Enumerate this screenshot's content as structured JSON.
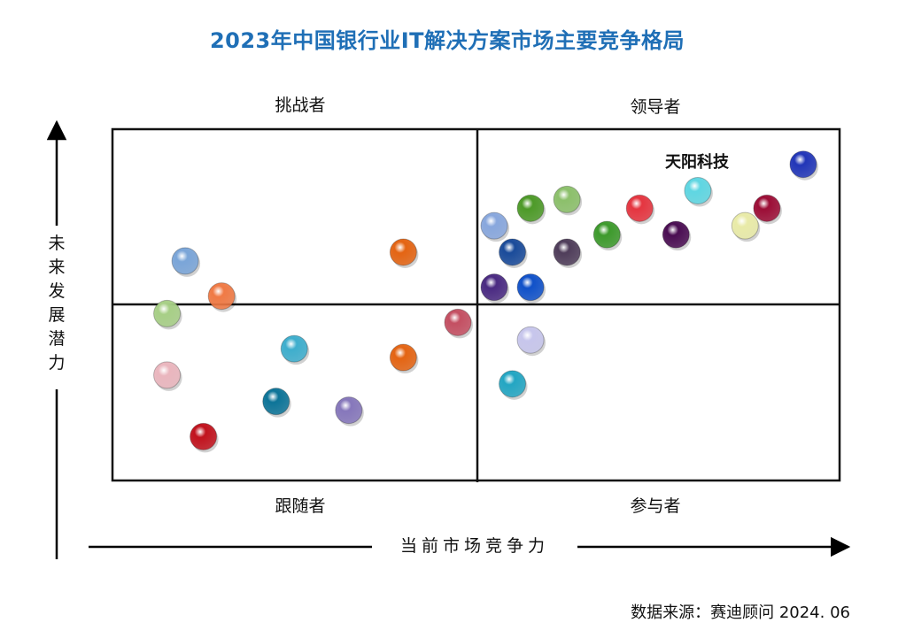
{
  "chart_data": {
    "type": "scatter",
    "title": "2023年中国银行业IT解决方案市场主要竞争格局",
    "xlabel": "当前市场竞争力",
    "ylabel": "未来发展潜力",
    "xlim": [
      0,
      100
    ],
    "ylim": [
      0,
      100
    ],
    "quadrants": {
      "top_left": "挑战者",
      "top_right": "领导者",
      "bottom_left": "跟随者",
      "bottom_right": "参与者"
    },
    "highlight_label": "天阳科技",
    "points": [
      {
        "x": 95.0,
        "y": 90.0,
        "color": "#2236b8"
      },
      {
        "x": 80.5,
        "y": 82.5,
        "color": "#5fd6e2"
      },
      {
        "x": 90.0,
        "y": 77.5,
        "color": "#9c0d36"
      },
      {
        "x": 87.0,
        "y": 72.5,
        "color": "#e9eba8"
      },
      {
        "x": 72.5,
        "y": 77.5,
        "color": "#e53540"
      },
      {
        "x": 77.5,
        "y": 70.0,
        "color": "#4a0d52"
      },
      {
        "x": 68.0,
        "y": 70.0,
        "color": "#3d9a2c"
      },
      {
        "x": 62.5,
        "y": 80.0,
        "color": "#8cc06b"
      },
      {
        "x": 57.5,
        "y": 77.5,
        "color": "#4d9a28"
      },
      {
        "x": 52.5,
        "y": 72.5,
        "color": "#88a7dd"
      },
      {
        "x": 55.0,
        "y": 65.0,
        "color": "#1a4b9a"
      },
      {
        "x": 62.5,
        "y": 65.0,
        "color": "#4f3d5a"
      },
      {
        "x": 52.5,
        "y": 55.0,
        "color": "#4a2a82"
      },
      {
        "x": 57.5,
        "y": 55.0,
        "color": "#1051c9"
      },
      {
        "x": 40.0,
        "y": 65.0,
        "color": "#e46413"
      },
      {
        "x": 10.0,
        "y": 62.5,
        "color": "#7aa5d8"
      },
      {
        "x": 15.0,
        "y": 52.5,
        "color": "#f07a45"
      },
      {
        "x": 7.5,
        "y": 47.5,
        "color": "#a7cf86"
      },
      {
        "x": 47.5,
        "y": 45.0,
        "color": "#c44f62"
      },
      {
        "x": 57.5,
        "y": 40.0,
        "color": "#c7c6ec"
      },
      {
        "x": 25.0,
        "y": 37.5,
        "color": "#3eaecd"
      },
      {
        "x": 40.0,
        "y": 35.0,
        "color": "#e46413"
      },
      {
        "x": 7.5,
        "y": 30.0,
        "color": "#eab6be"
      },
      {
        "x": 55.0,
        "y": 27.5,
        "color": "#23a6c3"
      },
      {
        "x": 22.5,
        "y": 22.5,
        "color": "#0d7498"
      },
      {
        "x": 32.5,
        "y": 20.0,
        "color": "#8677bb"
      },
      {
        "x": 12.5,
        "y": 12.5,
        "color": "#c1121d"
      }
    ]
  },
  "source": "数据来源：赛迪顾问  2024. 06"
}
